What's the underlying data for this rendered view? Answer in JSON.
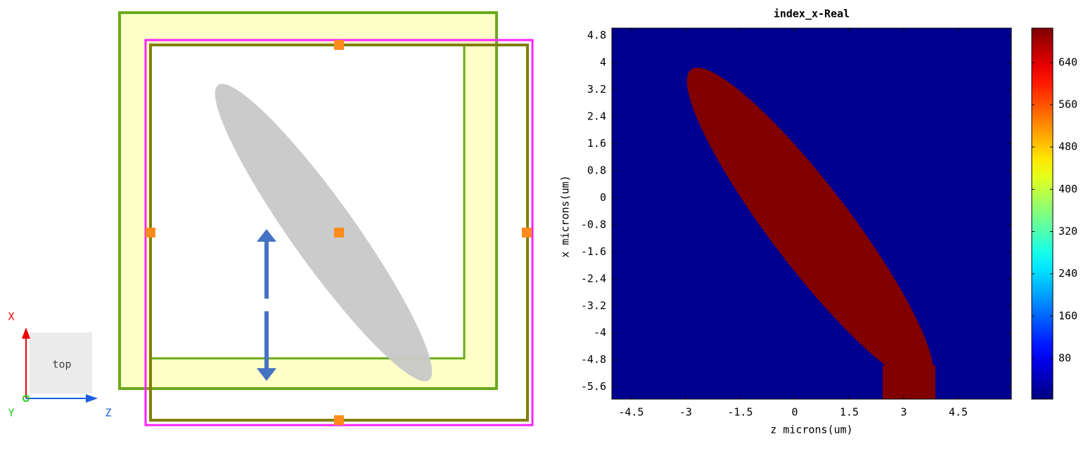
{
  "view": {
    "axis_x": "X",
    "axis_y": "Y",
    "axis_z": "Z",
    "view_name": "top"
  },
  "chart_data": {
    "type": "heatmap",
    "title": "index_x-Real",
    "xlabel": "z microns(um)",
    "ylabel": "x microns(um)",
    "xlim": [
      -5.03,
      5.96
    ],
    "ylim": [
      -5.96,
      5.02
    ],
    "xticks": [
      -4.5,
      -3,
      -1.5,
      0,
      1.5,
      3,
      4.5
    ],
    "yticks": [
      4.8,
      4,
      3.2,
      2.4,
      1.6,
      0.8,
      0,
      -0.8,
      -1.6,
      -2.4,
      -3.2,
      -4,
      -4.8,
      -5.6
    ],
    "colormap": "jet",
    "clim": [
      3,
      705
    ],
    "cticks": [
      80,
      160,
      240,
      320,
      400,
      480,
      560,
      640
    ]
  }
}
